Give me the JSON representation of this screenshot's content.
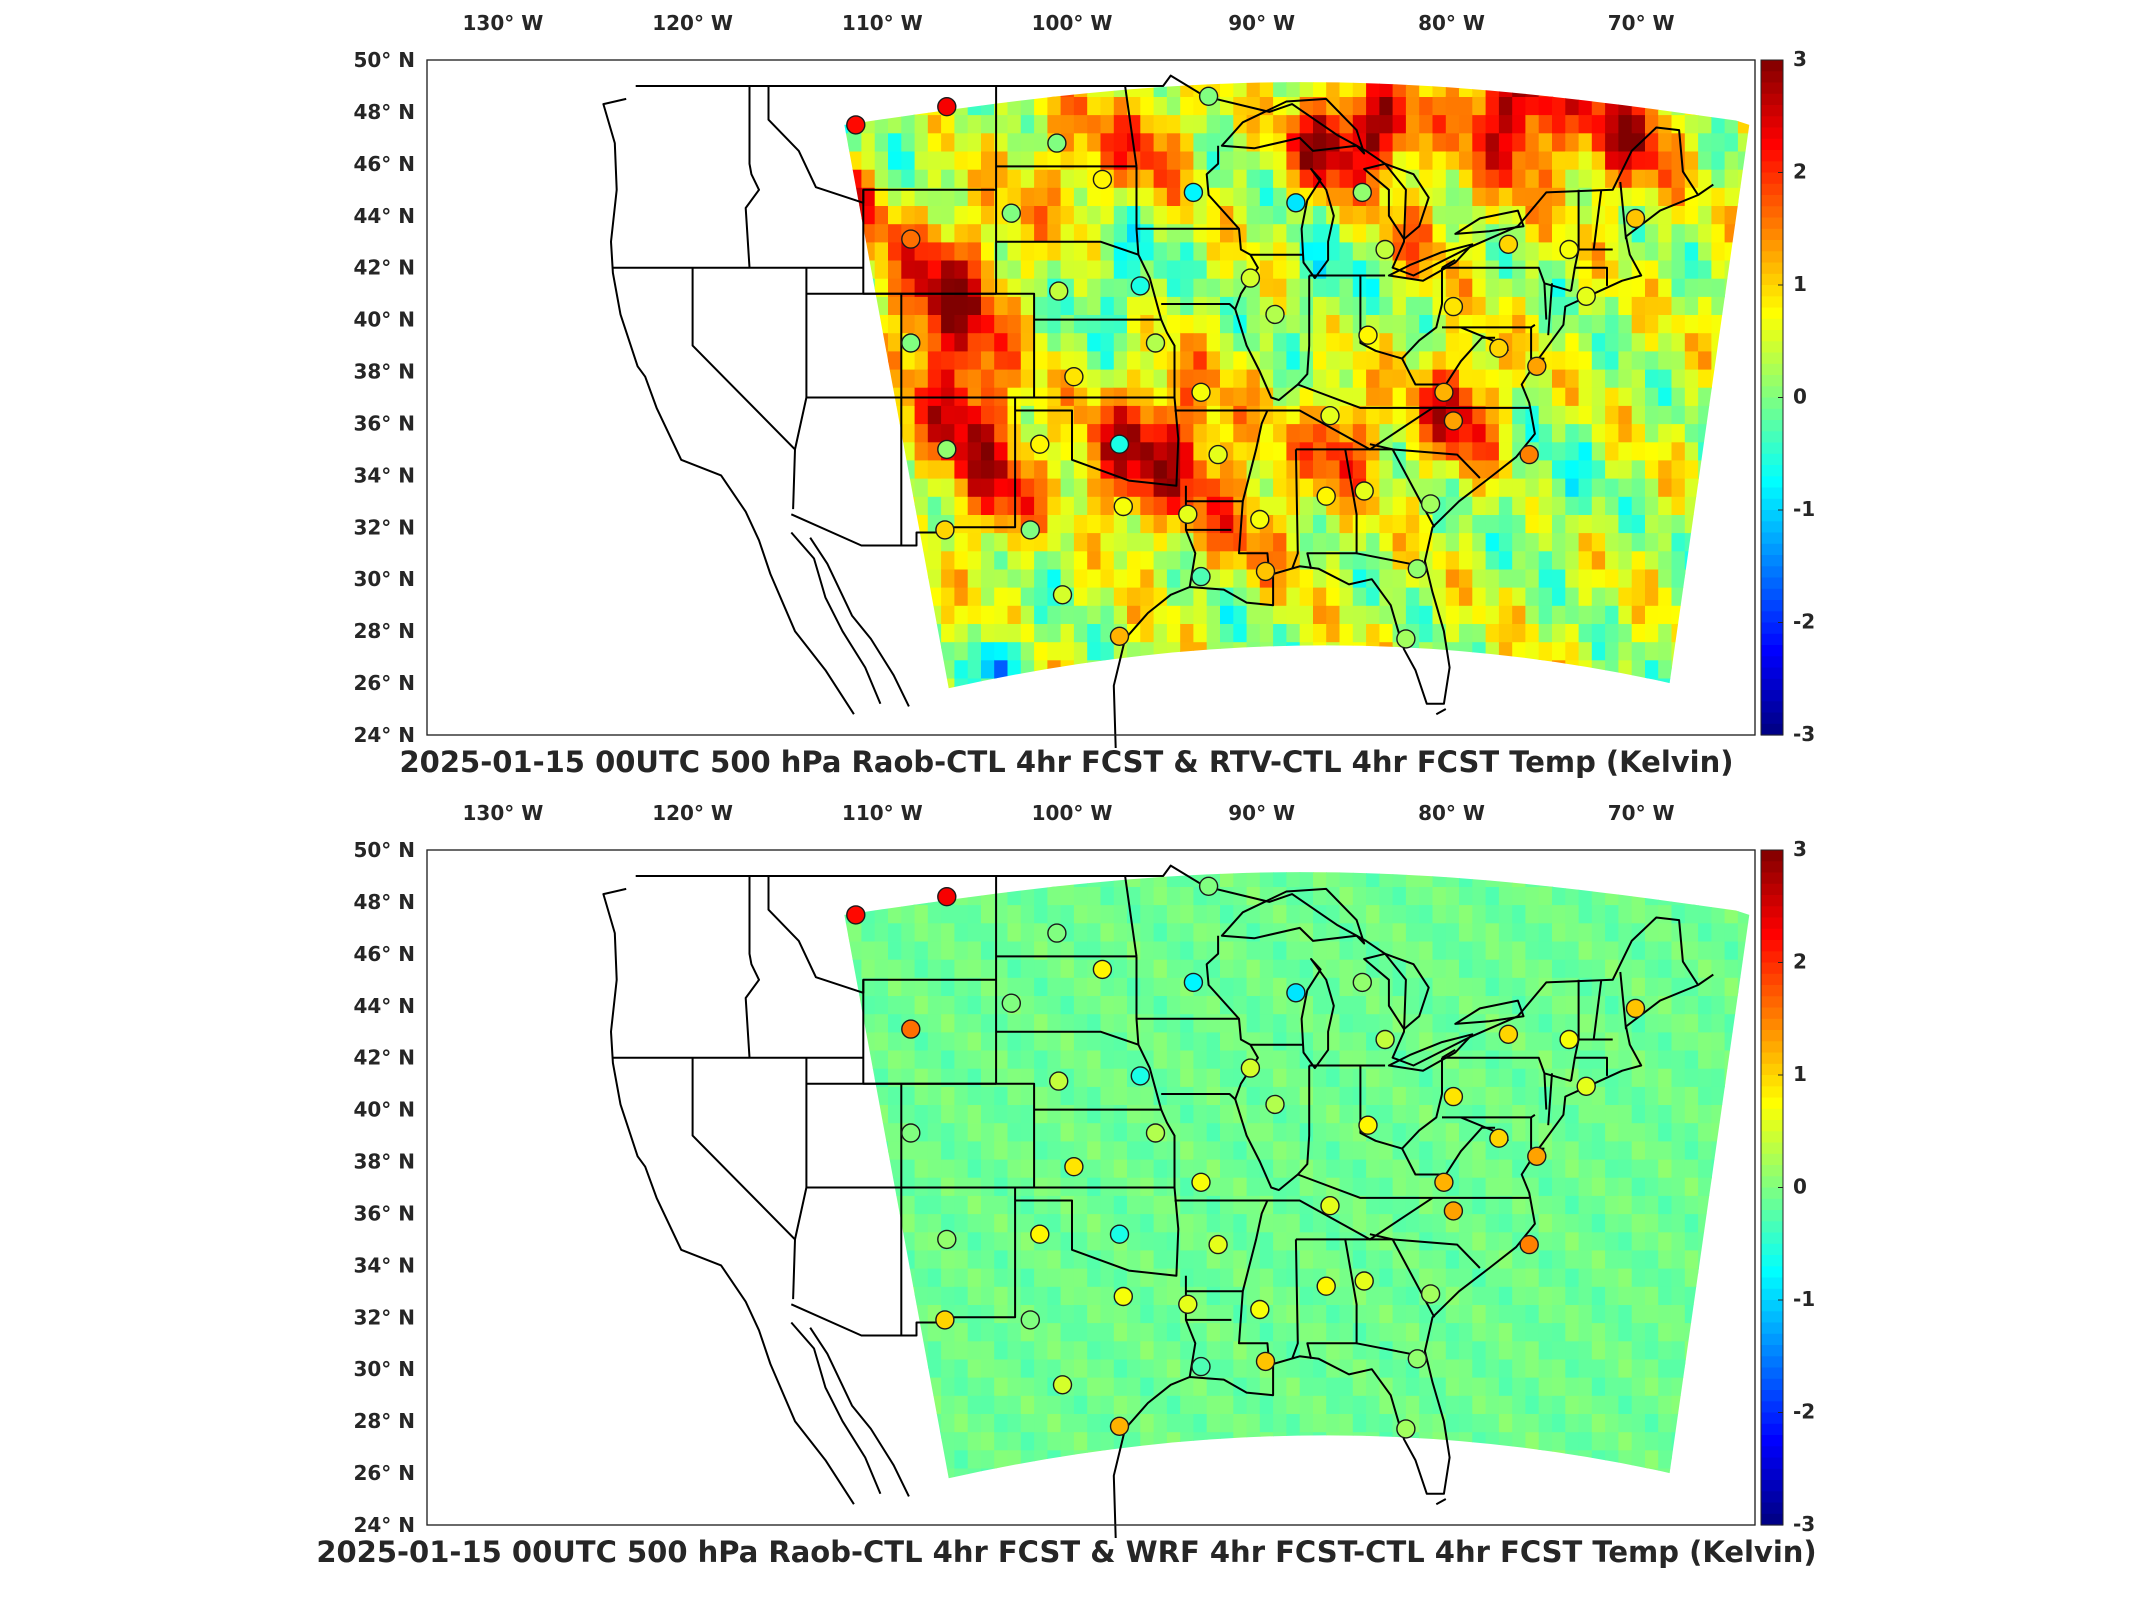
{
  "lon_ticks": [
    "130° W",
    "120° W",
    "110° W",
    "100° W",
    "90° W",
    "80° W",
    "70° W"
  ],
  "lat_ticks": [
    "50° N",
    "48° N",
    "46° N",
    "44° N",
    "42° N",
    "40° N",
    "38° N",
    "36° N",
    "34° N",
    "32° N",
    "30° N",
    "28° N",
    "26° N",
    "24° N"
  ],
  "colorbar": {
    "ticks": [
      "3",
      "2",
      "1",
      "0",
      "-1",
      "-2",
      "-3"
    ],
    "colormap": "jet",
    "range": [
      -3,
      3
    ]
  },
  "panels": [
    {
      "title": "2025-01-15 00UTC 500 hPa Raob-CTL 4hr FCST & RTV-CTL 4hr FCST Temp (Kelvin)",
      "background_field": "mixed"
    },
    {
      "title": "2025-01-15 00UTC 500 hPa Raob-CTL 4hr FCST & WRF 4hr FCST-CTL 4hr FCST Temp (Kelvin)",
      "background_field": "near-zero"
    }
  ],
  "stations": [
    {
      "lon": -111.4,
      "lat": 47.5,
      "v": 2.2
    },
    {
      "lon": -106.6,
      "lat": 48.2,
      "v": 2.3
    },
    {
      "lon": -100.8,
      "lat": 46.8,
      "v": 0.0
    },
    {
      "lon": -98.4,
      "lat": 45.4,
      "v": 0.8
    },
    {
      "lon": -93.6,
      "lat": 44.9,
      "v": -0.8
    },
    {
      "lon": -88.2,
      "lat": 44.5,
      "v": -0.9
    },
    {
      "lon": -84.7,
      "lat": 44.9,
      "v": 0.1
    },
    {
      "lon": -92.8,
      "lat": 48.6,
      "v": 0.0
    },
    {
      "lon": -103.2,
      "lat": 44.1,
      "v": 0.0
    },
    {
      "lon": -108.5,
      "lat": 43.1,
      "v": 1.6
    },
    {
      "lon": -100.7,
      "lat": 41.1,
      "v": 0.4
    },
    {
      "lon": -96.4,
      "lat": 41.3,
      "v": -0.6
    },
    {
      "lon": -90.6,
      "lat": 41.6,
      "v": 0.5
    },
    {
      "lon": -89.3,
      "lat": 40.2,
      "v": 0.3
    },
    {
      "lon": -83.5,
      "lat": 42.7,
      "v": 0.4
    },
    {
      "lon": -77.0,
      "lat": 42.9,
      "v": 1.0
    },
    {
      "lon": -73.8,
      "lat": 42.7,
      "v": 0.7
    },
    {
      "lon": -70.3,
      "lat": 43.9,
      "v": 1.1
    },
    {
      "lon": -79.9,
      "lat": 40.5,
      "v": 0.9
    },
    {
      "lon": -84.4,
      "lat": 39.4,
      "v": 0.8
    },
    {
      "lon": -77.5,
      "lat": 38.9,
      "v": 1.0
    },
    {
      "lon": -75.5,
      "lat": 38.2,
      "v": 1.3
    },
    {
      "lon": -72.9,
      "lat": 40.9,
      "v": 0.6
    },
    {
      "lon": -86.4,
      "lat": 36.3,
      "v": 0.6
    },
    {
      "lon": -80.4,
      "lat": 37.2,
      "v": 1.2
    },
    {
      "lon": -79.9,
      "lat": 36.1,
      "v": 1.3
    },
    {
      "lon": -75.9,
      "lat": 34.8,
      "v": 1.5
    },
    {
      "lon": -92.3,
      "lat": 34.8,
      "v": 0.6
    },
    {
      "lon": -93.2,
      "lat": 37.2,
      "v": 0.7
    },
    {
      "lon": -101.7,
      "lat": 35.2,
      "v": 0.8
    },
    {
      "lon": -97.5,
      "lat": 35.2,
      "v": -0.6
    },
    {
      "lon": -95.6,
      "lat": 39.1,
      "v": 0.3
    },
    {
      "lon": -99.9,
      "lat": 37.8,
      "v": 0.9
    },
    {
      "lon": -106.6,
      "lat": 35.0,
      "v": 0.1
    },
    {
      "lon": -108.5,
      "lat": 39.1,
      "v": 0.0
    },
    {
      "lon": -106.7,
      "lat": 31.9,
      "v": 1.0
    },
    {
      "lon": -102.2,
      "lat": 31.9,
      "v": 0.0
    },
    {
      "lon": -97.3,
      "lat": 32.8,
      "v": 0.7
    },
    {
      "lon": -100.5,
      "lat": 29.4,
      "v": 0.5
    },
    {
      "lon": -97.5,
      "lat": 27.8,
      "v": 1.2
    },
    {
      "lon": -93.2,
      "lat": 30.1,
      "v": -0.3
    },
    {
      "lon": -93.9,
      "lat": 32.5,
      "v": 0.6
    },
    {
      "lon": -90.1,
      "lat": 32.3,
      "v": 0.7
    },
    {
      "lon": -89.8,
      "lat": 30.3,
      "v": 1.1
    },
    {
      "lon": -86.6,
      "lat": 33.2,
      "v": 0.8
    },
    {
      "lon": -84.6,
      "lat": 33.4,
      "v": 0.6
    },
    {
      "lon": -81.1,
      "lat": 32.9,
      "v": 0.2
    },
    {
      "lon": -81.8,
      "lat": 30.4,
      "v": 0.1
    },
    {
      "lon": -82.4,
      "lat": 27.7,
      "v": 0.2
    }
  ]
}
